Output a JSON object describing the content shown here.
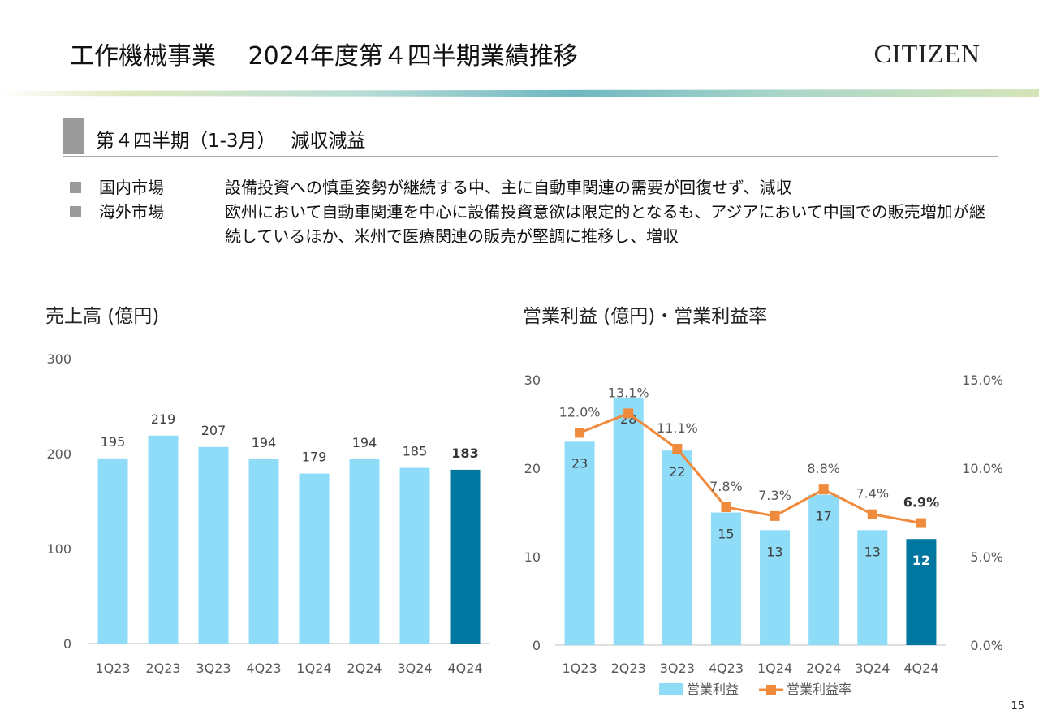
{
  "page": {
    "title": "工作機械事業　 2024年度第４四半期業績推移",
    "logo": "CITIZEN",
    "section_heading": "第４四半期（1-3月）　 減収減益",
    "bullets": [
      {
        "label": "国内市場",
        "text": "設備投資への慎重姿勢が継続する中、主に自動車関連の需要が回復せず、減収"
      },
      {
        "label": "海外市場",
        "text": "欧州において自動車関連を中心に設備投資意欲は限定的となるも、アジアにおいて中国での販売増加が継続しているほか、米州で医療関連の販売が堅調に推移し、増収"
      }
    ],
    "page_number": "15",
    "colors": {
      "bar_light": "#8edcf8",
      "bar_dark": "#0077a0",
      "line": "#f08a3c",
      "band": "#c9dfa6"
    }
  },
  "chart_data": [
    {
      "type": "bar",
      "title": "売上高 (億円)",
      "categories": [
        "1Q23",
        "2Q23",
        "3Q23",
        "4Q23",
        "1Q24",
        "2Q24",
        "3Q24",
        "4Q24"
      ],
      "values": [
        195,
        219,
        207,
        194,
        179,
        194,
        185,
        183
      ],
      "ylim": [
        0,
        300
      ],
      "yticks": [
        "0",
        "100",
        "200",
        "300"
      ],
      "highlight_last": true
    },
    {
      "type": "bar",
      "title": "営業利益 (億円)・営業利益率",
      "categories": [
        "1Q23",
        "2Q23",
        "3Q23",
        "4Q23",
        "1Q24",
        "2Q24",
        "3Q24",
        "4Q24"
      ],
      "series": [
        {
          "name": "営業利益",
          "type": "bar",
          "axis": "left",
          "values": [
            23,
            28,
            22,
            15,
            13,
            17,
            13,
            12
          ]
        },
        {
          "name": "営業利益率",
          "type": "line",
          "axis": "right",
          "values": [
            12.0,
            13.1,
            11.1,
            7.8,
            7.3,
            8.8,
            7.4,
            6.9
          ],
          "labels": [
            "12.0%",
            "13.1%",
            "11.1%",
            "7.8%",
            "7.3%",
            "8.8%",
            "7.4%",
            "6.9%"
          ]
        }
      ],
      "ylim_left": [
        0,
        30
      ],
      "yticks_left": [
        "0",
        "10",
        "20",
        "30"
      ],
      "ylim_right": [
        0,
        15
      ],
      "yticks_right": [
        "0.0%",
        "5.0%",
        "10.0%",
        "15.0%"
      ],
      "legend": [
        "営業利益",
        "営業利益率"
      ],
      "legend_position": "bottom",
      "highlight_last": true
    }
  ]
}
